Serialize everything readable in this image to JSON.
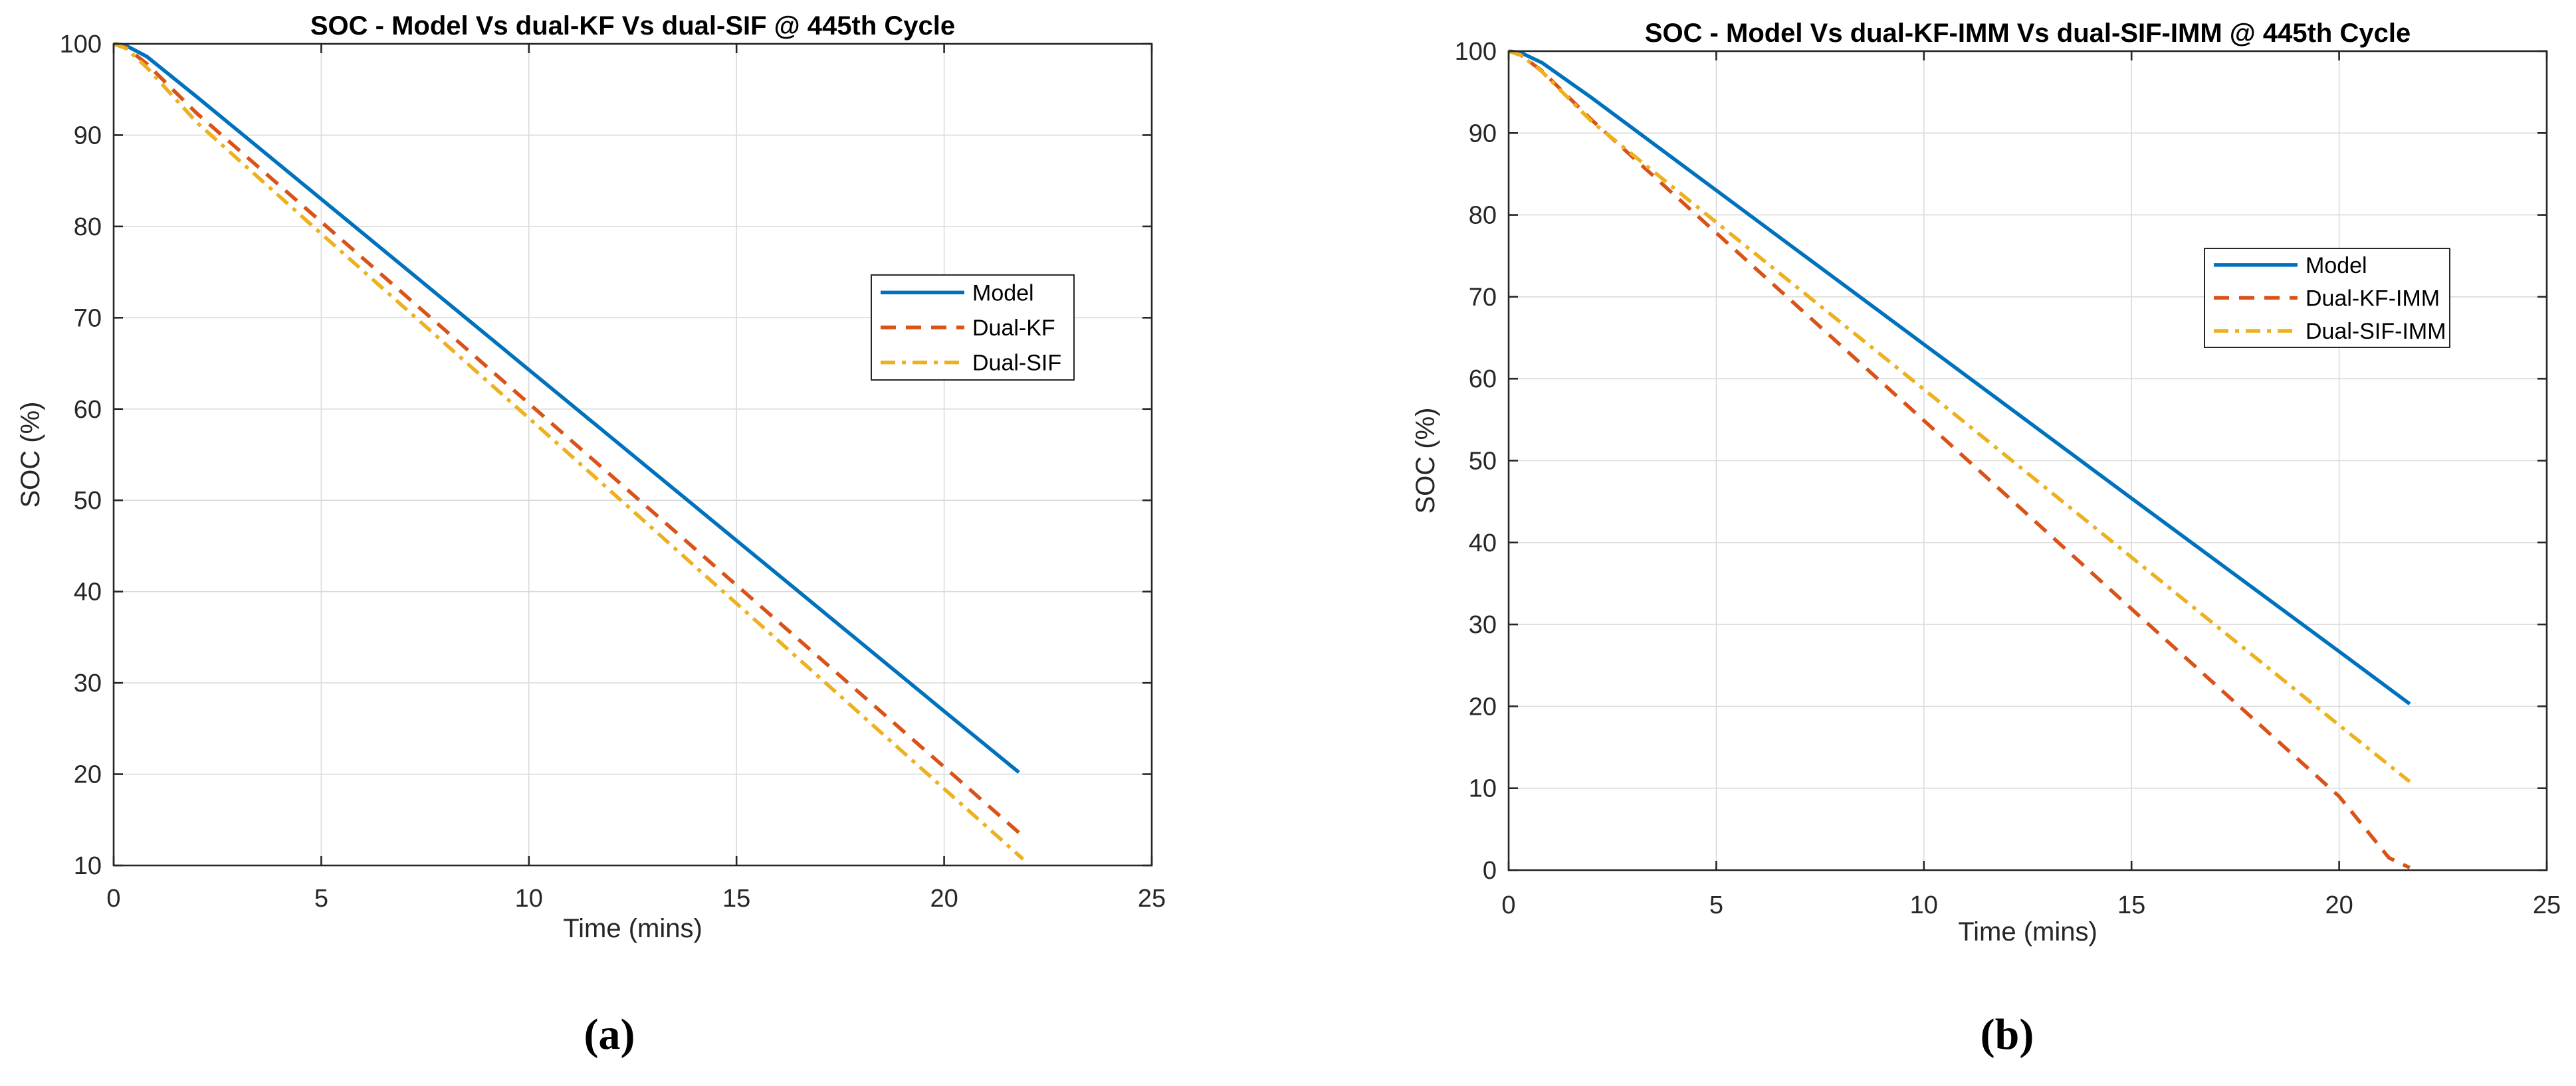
{
  "page": {
    "background": "#ffffff"
  },
  "palette": {
    "model_blue": "#0072BD",
    "kf_orange": "#D95319",
    "sif_yellow": "#EDB120",
    "axis_color": "#262626",
    "title_color": "#000000",
    "grid_color": "#dbdbdb",
    "legend_bg": "#ffffff",
    "legend_border": "#262626"
  },
  "chart_data": [
    {
      "type": "line",
      "title": "SOC - Model Vs dual-KF Vs dual-SIF @ 445th Cycle",
      "xlabel": "Time (mins)",
      "ylabel": "SOC (%)",
      "xlim": [
        0,
        25
      ],
      "ylim": [
        10,
        100
      ],
      "xticks": [
        0,
        5,
        10,
        15,
        20,
        25
      ],
      "yticks": [
        10,
        20,
        30,
        40,
        50,
        60,
        70,
        80,
        90,
        100
      ],
      "grid": true,
      "legend_position": "upper-right-inside",
      "caption": "(a)",
      "series": [
        {
          "name": "Model",
          "color": "#0072BD",
          "style": "solid",
          "points": [
            [
              0,
              100
            ],
            [
              0.3,
              99.8
            ],
            [
              0.8,
              98.6
            ],
            [
              2,
              94.2
            ],
            [
              5,
              83.0
            ],
            [
              10,
              64.3
            ],
            [
              15,
              45.6
            ],
            [
              20,
              26.9
            ],
            [
              21.8,
              20.2
            ]
          ]
        },
        {
          "name": "Dual-KF",
          "color": "#D95319",
          "style": "dashed",
          "points": [
            [
              0,
              100
            ],
            [
              0.3,
              99.6
            ],
            [
              0.8,
              97.8
            ],
            [
              2,
              92.4
            ],
            [
              5,
              80.5
            ],
            [
              10,
              60.6
            ],
            [
              15,
              40.7
            ],
            [
              20,
              20.8
            ],
            [
              21.9,
              13.2
            ]
          ]
        },
        {
          "name": "Dual-SIF",
          "color": "#EDB120",
          "style": "dashdot",
          "points": [
            [
              0,
              100
            ],
            [
              0.3,
              99.5
            ],
            [
              0.8,
              97.4
            ],
            [
              2,
              91.4
            ],
            [
              5,
              79.2
            ],
            [
              10,
              59.0
            ],
            [
              15,
              38.7
            ],
            [
              20,
              18.4
            ],
            [
              21.9,
              10.7
            ]
          ]
        }
      ]
    },
    {
      "type": "line",
      "title": "SOC - Model Vs dual-KF-IMM Vs dual-SIF-IMM @ 445th Cycle",
      "xlabel": "Time (mins)",
      "ylabel": "SOC (%)",
      "xlim": [
        0,
        25
      ],
      "ylim": [
        0,
        100
      ],
      "xticks": [
        0,
        5,
        10,
        15,
        20,
        25
      ],
      "yticks": [
        0,
        10,
        20,
        30,
        40,
        50,
        60,
        70,
        80,
        90,
        100
      ],
      "grid": true,
      "legend_position": "upper-right-inside",
      "caption": "(b)",
      "series": [
        {
          "name": "Model",
          "color": "#0072BD",
          "style": "solid",
          "points": [
            [
              0,
              100
            ],
            [
              0.3,
              99.8
            ],
            [
              0.8,
              98.6
            ],
            [
              2,
              94.3
            ],
            [
              5,
              83.0
            ],
            [
              10,
              64.2
            ],
            [
              15,
              45.4
            ],
            [
              20,
              26.7
            ],
            [
              21.7,
              20.3
            ]
          ]
        },
        {
          "name": "Dual-KF-IMM",
          "color": "#D95319",
          "style": "dashed",
          "points": [
            [
              0,
              100
            ],
            [
              0.3,
              99.5
            ],
            [
              0.8,
              97.6
            ],
            [
              2,
              91.6
            ],
            [
              5,
              77.8
            ],
            [
              10,
              54.9
            ],
            [
              15,
              31.9
            ],
            [
              20,
              9.0
            ],
            [
              21.2,
              1.5
            ],
            [
              21.7,
              0.3
            ]
          ]
        },
        {
          "name": "Dual-SIF-IMM",
          "color": "#EDB120",
          "style": "dashdot",
          "points": [
            [
              0,
              100
            ],
            [
              0.3,
              99.5
            ],
            [
              0.8,
              97.5
            ],
            [
              2,
              91.4
            ],
            [
              5,
              79.1
            ],
            [
              10,
              58.7
            ],
            [
              15,
              38.2
            ],
            [
              20,
              17.7
            ],
            [
              21.7,
              10.8
            ]
          ]
        }
      ]
    }
  ]
}
